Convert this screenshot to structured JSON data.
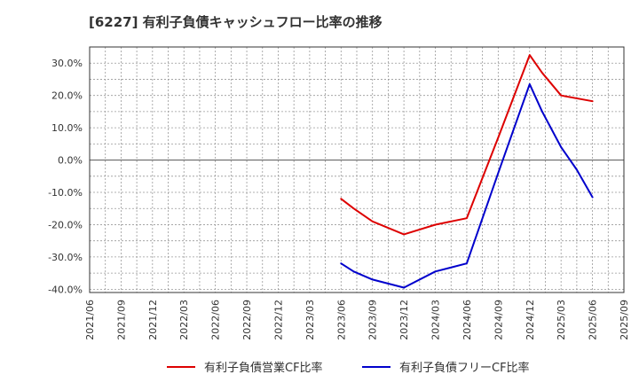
{
  "chart_data": {
    "type": "line",
    "title": "[6227]  有利子負債キャッシュフロー比率の推移",
    "xlabel": "",
    "ylabel": "",
    "x_ticks": [
      "2021/06",
      "2021/09",
      "2021/12",
      "2022/03",
      "2022/06",
      "2022/09",
      "2022/12",
      "2023/03",
      "2023/06",
      "2023/09",
      "2023/12",
      "2024/03",
      "2024/06",
      "2024/09",
      "2024/12",
      "2025/03",
      "2025/06",
      "2025/09"
    ],
    "y_ticks": [
      "30.0%",
      "20.0%",
      "10.0%",
      "0.0%",
      "-10.0%",
      "-20.0%",
      "-30.0%",
      "-40.0%"
    ],
    "y_tick_values": [
      30,
      20,
      10,
      0,
      -10,
      -20,
      -30,
      -40
    ],
    "ylim": [
      -41,
      35
    ],
    "series": [
      {
        "name": "有利子負債営業CF比率",
        "color": "#dd0000",
        "points": [
          {
            "x": 8,
            "y": -12.0
          },
          {
            "x": 8.4,
            "y": -15.0
          },
          {
            "x": 9,
            "y": -19.0
          },
          {
            "x": 10,
            "y": -23.0
          },
          {
            "x": 11,
            "y": -20.0
          },
          {
            "x": 12,
            "y": -18.0
          },
          {
            "x": 13,
            "y": 7.0
          },
          {
            "x": 14,
            "y": 32.5
          },
          {
            "x": 14.4,
            "y": 27.0
          },
          {
            "x": 15,
            "y": 20.0
          },
          {
            "x": 16,
            "y": 18.2
          }
        ]
      },
      {
        "name": "有利子負債フリーCF比率",
        "color": "#0000cc",
        "points": [
          {
            "x": 8,
            "y": -32.0
          },
          {
            "x": 8.4,
            "y": -34.5
          },
          {
            "x": 9,
            "y": -37.0
          },
          {
            "x": 10,
            "y": -39.5
          },
          {
            "x": 11,
            "y": -34.5
          },
          {
            "x": 12,
            "y": -32.0
          },
          {
            "x": 13,
            "y": -4.0
          },
          {
            "x": 14,
            "y": 23.5
          },
          {
            "x": 14.4,
            "y": 15.0
          },
          {
            "x": 15,
            "y": 4.0
          },
          {
            "x": 15.5,
            "y": -3.0
          },
          {
            "x": 16,
            "y": -11.5
          }
        ]
      }
    ],
    "legend_position": "bottom",
    "grid": true
  }
}
